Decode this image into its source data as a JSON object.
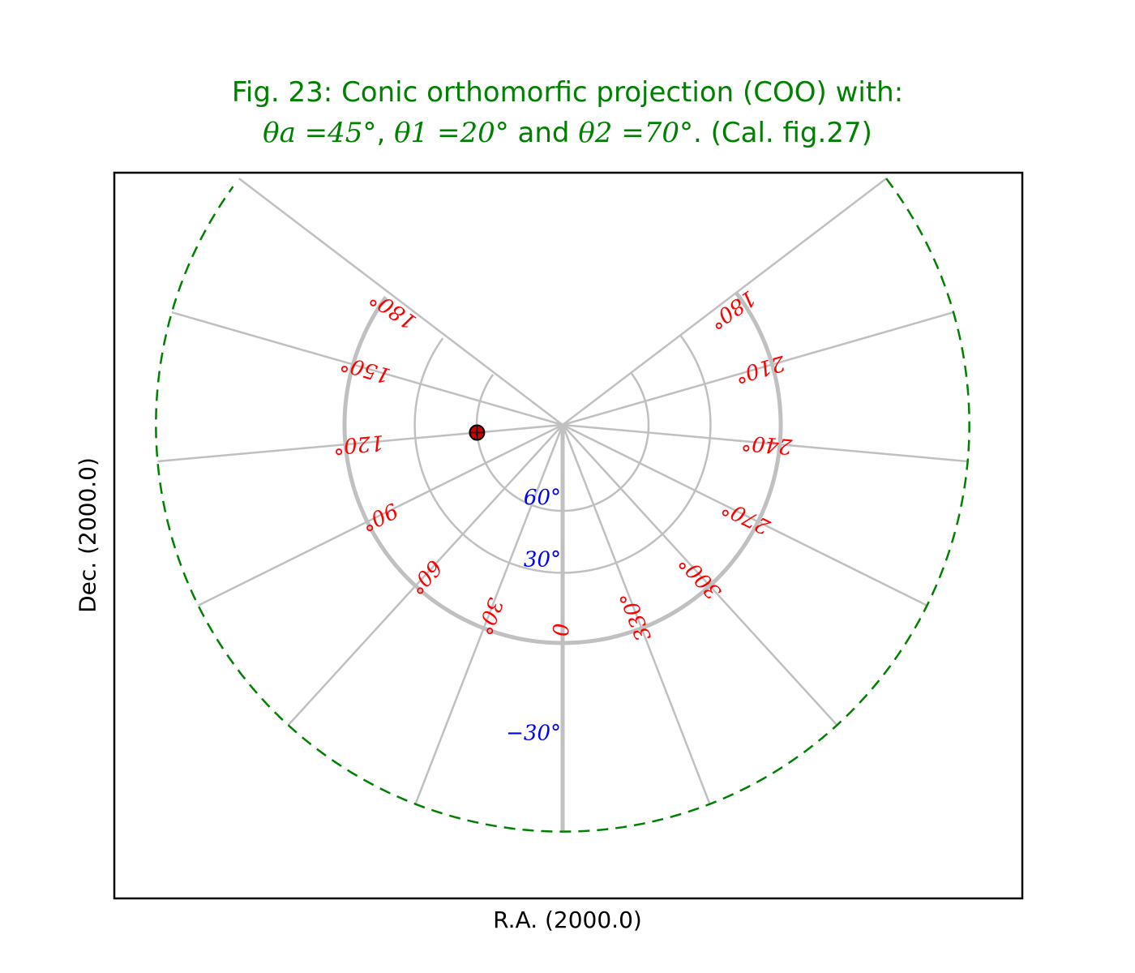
{
  "title": {
    "line1": "Fig. 23: Conic orthomorfic projection (COO) with:",
    "theta_a": "θa =45°",
    "sep1": ", ",
    "theta_1": "θ1 =20°",
    "and": " and ",
    "theta_2": "θ2 =70°",
    "end": ". (Cal. fig.27)"
  },
  "axes": {
    "xlabel": "R.A. (2000.0)",
    "ylabel": "Dec. (2000.0)"
  },
  "projection": {
    "name": "COO",
    "theta_a_deg": 45,
    "theta_1_deg": 20,
    "theta_2_deg": 70
  },
  "graticule": {
    "meridian_labels": [
      "180°",
      "150°",
      "120°",
      "90°",
      "60°",
      "30°",
      "0",
      "330°",
      "300°",
      "270°",
      "240°",
      "210°",
      "180°"
    ],
    "parallel_labels": [
      "60°",
      "30°",
      "−30°"
    ],
    "colors": {
      "grid": "#c0c0c0",
      "meridian_label": "#ff0000",
      "parallel_label": "#0000ff",
      "border": "#008000",
      "title": "#008000",
      "marker": "#cc0000"
    }
  },
  "marker": {
    "ra_deg": 120,
    "dec_deg": 60
  }
}
